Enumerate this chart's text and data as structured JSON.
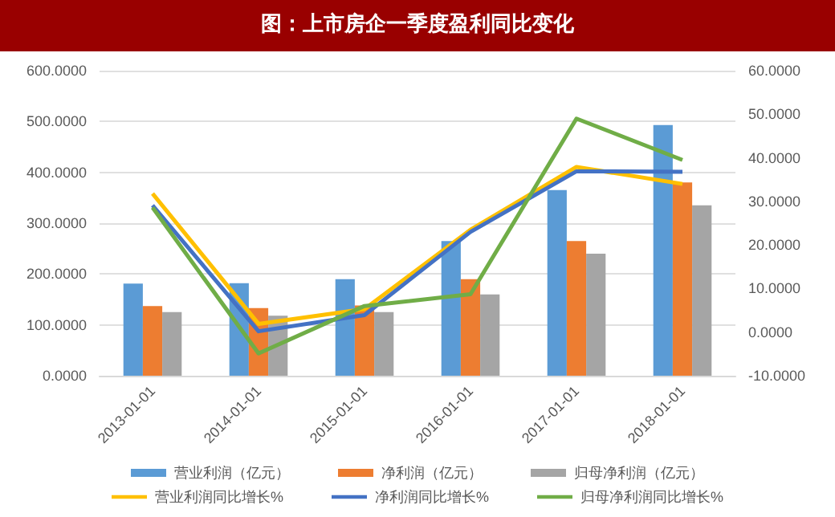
{
  "chart_data": {
    "type": "bar",
    "title": "图：上市房企一季度盈利同比变化",
    "categories": [
      "2013-01-01",
      "2014-01-01",
      "2015-01-01",
      "2016-01-01",
      "2017-01-01",
      "2018-01-01"
    ],
    "series": [
      {
        "name": "营业利润（亿元）",
        "color": "#5b9bd5",
        "values": [
          181,
          182,
          190,
          265,
          365,
          493
        ]
      },
      {
        "name": "净利润（亿元）",
        "color": "#ed7d31",
        "values": [
          137,
          133,
          138,
          190,
          265,
          380
        ]
      },
      {
        "name": "归母净利润（亿元）",
        "color": "#a5a5a5",
        "values": [
          125,
          118,
          125,
          160,
          240,
          335
        ]
      },
      {
        "name": "营业利润同比增长%",
        "type": "line",
        "axis": "y2",
        "color": "#ffc000",
        "values": [
          31.8,
          1.9,
          5.3,
          23.5,
          37.9,
          34
        ]
      },
      {
        "name": "净利润同比增长%",
        "type": "line",
        "axis": "y2",
        "color": "#4472c4",
        "values": [
          29.1,
          0.2,
          3.9,
          23,
          36.9,
          36.8
        ]
      },
      {
        "name": "归母净利润同比增长%",
        "type": "line",
        "axis": "y2",
        "color": "#70ad47",
        "values": [
          28.6,
          -4.9,
          6,
          8.7,
          49,
          39.5
        ]
      }
    ],
    "ylim": [
      0,
      600
    ],
    "yticks": [
      {
        "value": 0,
        "label": "0.0000"
      },
      {
        "value": 100,
        "label": "100.0000"
      },
      {
        "value": 200,
        "label": "200.0000"
      },
      {
        "value": 300,
        "label": "300.0000"
      },
      {
        "value": 400,
        "label": "400.0000"
      },
      {
        "value": 500,
        "label": "500.0000"
      },
      {
        "value": 600,
        "label": "600.0000"
      }
    ],
    "y2lim": [
      -10,
      60
    ],
    "y2ticks": [
      {
        "value": -10,
        "label": "-10.0000"
      },
      {
        "value": 0,
        "label": "0.0000"
      },
      {
        "value": 10,
        "label": "10.0000"
      },
      {
        "value": 20,
        "label": "20.0000"
      },
      {
        "value": 30,
        "label": "30.0000"
      },
      {
        "value": 40,
        "label": "40.0000"
      },
      {
        "value": 50,
        "label": "50.0000"
      },
      {
        "value": 60,
        "label": "60.0000"
      }
    ],
    "grid": "y",
    "legend": "bottom",
    "marker": "none"
  }
}
